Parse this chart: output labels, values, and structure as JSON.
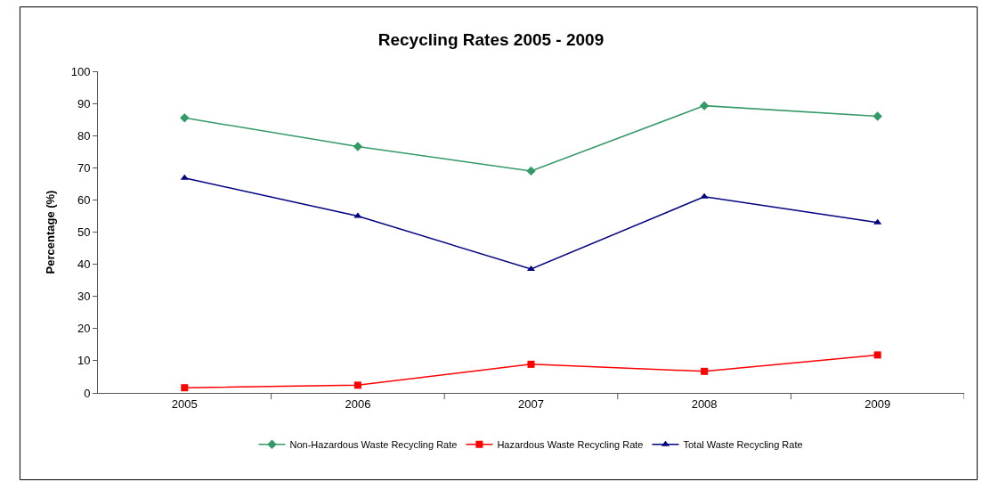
{
  "chart_data": {
    "type": "line",
    "title": "Recycling Rates 2005 - 2009",
    "ylabel": "Percentage (%)",
    "categories": [
      "2005",
      "2006",
      "2007",
      "2008",
      "2009"
    ],
    "series": [
      {
        "name": "Non-Hazardous Waste Recycling Rate",
        "color": "#339966",
        "marker": "diamond",
        "values": [
          85.5,
          76.6,
          69,
          89.3,
          86
        ]
      },
      {
        "name": "Hazardous Waste Recycling Rate",
        "color": "#ff0000",
        "marker": "square",
        "values": [
          1.6,
          2.4,
          8.9,
          6.7,
          11.8
        ]
      },
      {
        "name": "Total Waste Recycling Rate",
        "color": "#000080",
        "marker": "triangle",
        "values": [
          66.8,
          55,
          38.5,
          61,
          53
        ]
      }
    ],
    "ylim": [
      0,
      100
    ],
    "yticks": [
      0,
      10,
      20,
      30,
      40,
      50,
      60,
      70,
      80,
      90,
      100
    ],
    "grid": false,
    "legend": "bottom",
    "line_style": "solid"
  }
}
